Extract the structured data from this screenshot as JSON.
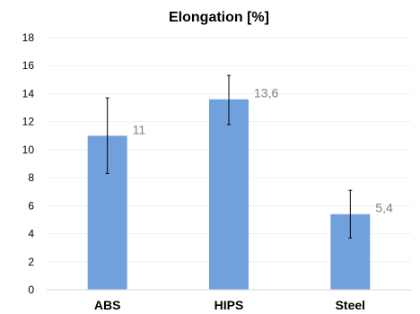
{
  "chart_data": {
    "type": "bar",
    "title": "Elongation [%]",
    "xlabel": "",
    "ylabel": "",
    "categories": [
      "ABS",
      "HIPS",
      "Steel"
    ],
    "values": [
      11,
      13.6,
      5.4
    ],
    "data_labels": [
      "11",
      "13,6",
      "5,4"
    ],
    "error_bars": [
      {
        "low": 8.3,
        "high": 13.7
      },
      {
        "low": 11.8,
        "high": 15.3
      },
      {
        "low": 3.7,
        "high": 7.1
      }
    ],
    "ylim": [
      0,
      18
    ],
    "yticks": [
      0,
      2,
      4,
      6,
      8,
      10,
      12,
      14,
      16,
      18
    ],
    "grid": true,
    "legend": "none",
    "colors": {
      "bar": "#70a1dd",
      "label": "#808080"
    }
  }
}
